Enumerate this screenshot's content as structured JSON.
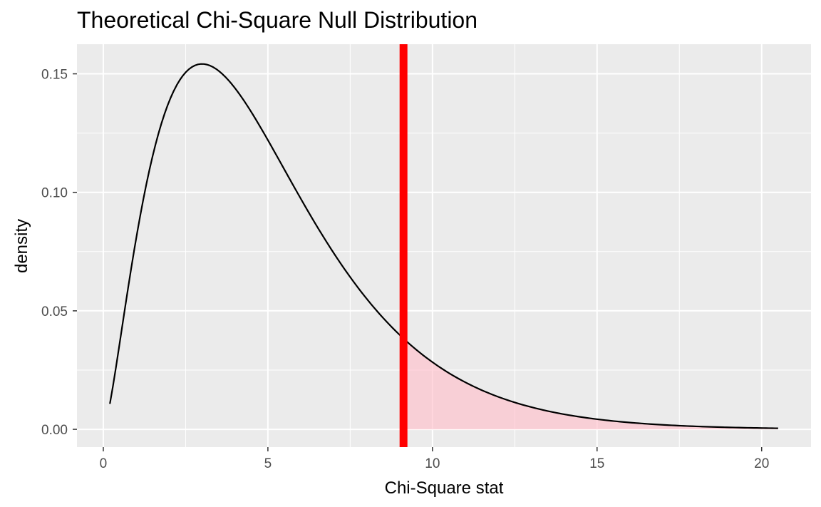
{
  "chart_data": {
    "type": "line",
    "title": "Theoretical Chi-Square Null Distribution",
    "xlabel": "Chi-Square stat",
    "ylabel": "density",
    "xlim": [
      -0.8,
      21.5
    ],
    "ylim": [
      -0.0075,
      0.1625
    ],
    "x_ticks": [
      0,
      5,
      10,
      15,
      20
    ],
    "x_tick_labels": [
      "0",
      "5",
      "10",
      "15",
      "20"
    ],
    "y_ticks": [
      0.0,
      0.05,
      0.1,
      0.15
    ],
    "y_tick_labels": [
      "0.00",
      "0.05",
      "0.10",
      "0.15"
    ],
    "x_minor_breaks": [
      2.5,
      7.5,
      12.5,
      17.5
    ],
    "y_minor_breaks": [
      0.025,
      0.075,
      0.125
    ],
    "grid": true,
    "legend": "none",
    "distribution": "chi-square",
    "degrees_of_freedom": 5,
    "x_range": [
      0.2,
      20.5
    ],
    "series": [
      {
        "x": [
          0.2,
          0.5,
          1.0,
          1.5,
          2.0,
          2.5,
          3.0,
          3.5,
          4.0,
          5.0,
          6.0,
          7.0,
          8.0,
          9.0,
          9.12,
          10.0,
          11.0,
          12.0,
          13.0,
          14.0,
          15.0,
          16.0,
          17.0,
          18.0,
          19.0,
          20.0,
          20.5
        ],
        "y": [
          0.0119,
          0.0366,
          0.0807,
          0.1156,
          0.1384,
          0.15,
          0.1542,
          0.1526,
          0.1465,
          0.122,
          0.0974,
          0.0748,
          0.0542,
          0.0389,
          0.0373,
          0.0283,
          0.0191,
          0.0128,
          0.0085,
          0.0055,
          0.0036,
          0.0023,
          0.0015,
          0.0009,
          0.0006,
          0.0004,
          0.0003
        ]
      }
    ],
    "observed_stat": 9.12,
    "shaded_region": {
      "from": 9.12,
      "to": 20.5
    },
    "colors": {
      "panel_background": "#EBEBEB",
      "grid": "#FFFFFF",
      "curve": "#000000",
      "observed_line": "#FF0000",
      "shade_fill": "#FFC0CB",
      "axis_ticks": "#333333",
      "tick_text": "#4D4D4D"
    }
  }
}
